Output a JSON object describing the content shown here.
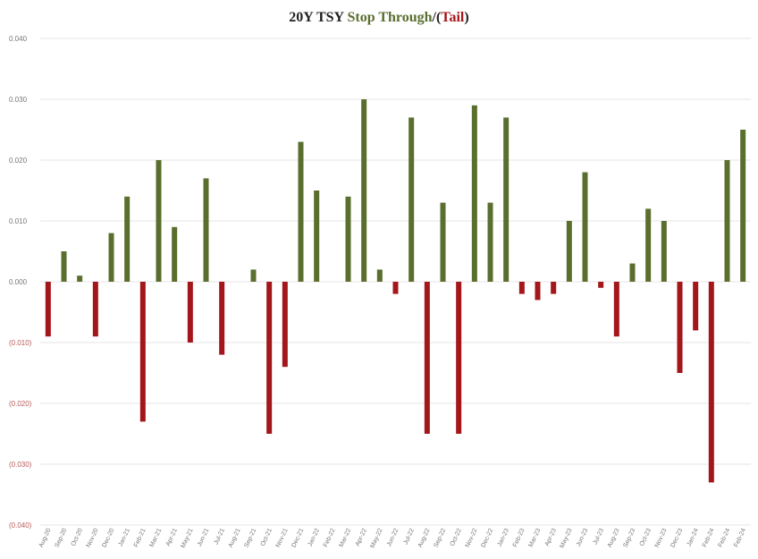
{
  "chart_data": {
    "type": "bar",
    "title_parts": [
      {
        "text": "20Y TSY",
        "color": "#222222"
      },
      {
        "text": "Stop Through",
        "color": "#5a6e2e"
      },
      {
        "text": "/(",
        "color": "#222222"
      },
      {
        "text": "Tail",
        "color": "#a3161a"
      },
      {
        "text": ")",
        "color": "#222222"
      }
    ],
    "categories": [
      "Aug-20",
      "Sep-20",
      "Oct-20",
      "Nov-20",
      "Dec-20",
      "Jan-21",
      "Feb-21",
      "Mar-21",
      "Apr-21",
      "May-21",
      "Jun-21",
      "Jul-21",
      "Aug-21",
      "Sep-21",
      "Oct-21",
      "Nov-21",
      "Dec-21",
      "Jan-22",
      "Feb-22",
      "Mar-22",
      "Apr-22",
      "May-22",
      "Jun-22",
      "Jul-22",
      "Aug-22",
      "Sep-22",
      "Oct-22",
      "Nov-22",
      "Dec-22",
      "Jan-23",
      "Feb-23",
      "Mar-23",
      "Apr-23",
      "May-23",
      "Jun-23",
      "Jul-23",
      "Aug-23",
      "Sep-23",
      "Oct-23",
      "Nov-23",
      "Dec-23",
      "Jan-24",
      "Feb-24",
      "Feb-24",
      "Feb-24"
    ],
    "values": [
      -0.009,
      0.005,
      0.001,
      -0.009,
      0.008,
      0.014,
      -0.023,
      0.02,
      0.009,
      -0.01,
      0.017,
      -0.012,
      0,
      0.002,
      -0.025,
      -0.014,
      0.023,
      0.015,
      0,
      0.014,
      0.03,
      0.002,
      -0.002,
      0.027,
      -0.025,
      0.013,
      -0.025,
      0.029,
      0.013,
      0.027,
      -0.002,
      -0.003,
      -0.002,
      0.01,
      0.018,
      -0.001,
      -0.009,
      0.003,
      0.012,
      0.01,
      -0.015,
      -0.008,
      -0.033,
      0.02,
      0.025
    ],
    "positive_color": "#5a6e2e",
    "negative_color": "#a3161a",
    "ylim": [
      -0.04,
      0.04
    ],
    "yticks": [
      {
        "value": 0.04,
        "label": "0.040"
      },
      {
        "value": 0.03,
        "label": "0.030"
      },
      {
        "value": 0.02,
        "label": "0.020"
      },
      {
        "value": 0.01,
        "label": "0.010"
      },
      {
        "value": 0,
        "label": "0.000"
      },
      {
        "value": -0.01,
        "label": "(0.010)"
      },
      {
        "value": -0.02,
        "label": "(0.020)"
      },
      {
        "value": -0.03,
        "label": "(0.030)"
      },
      {
        "value": -0.04,
        "label": "(0.040)"
      }
    ],
    "grid": true
  }
}
